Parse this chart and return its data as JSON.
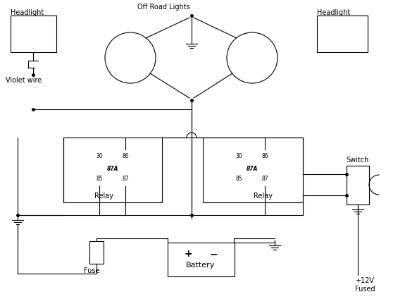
{
  "bg_color": "#ffffff",
  "line_color": "#000000",
  "figsize": [
    5.75,
    4.24
  ],
  "dpi": 100,
  "labels": {
    "headlight_left": "Headlight",
    "headlight_right": "Headlight",
    "off_road": "Off Road Lights",
    "violet": "Violet wire",
    "relay_left": "Relay",
    "relay_right": "Relay",
    "switch": "Switch",
    "fuse": "Fuse",
    "battery": "Battery",
    "plus12v": "+12V",
    "fused": "Fused"
  }
}
